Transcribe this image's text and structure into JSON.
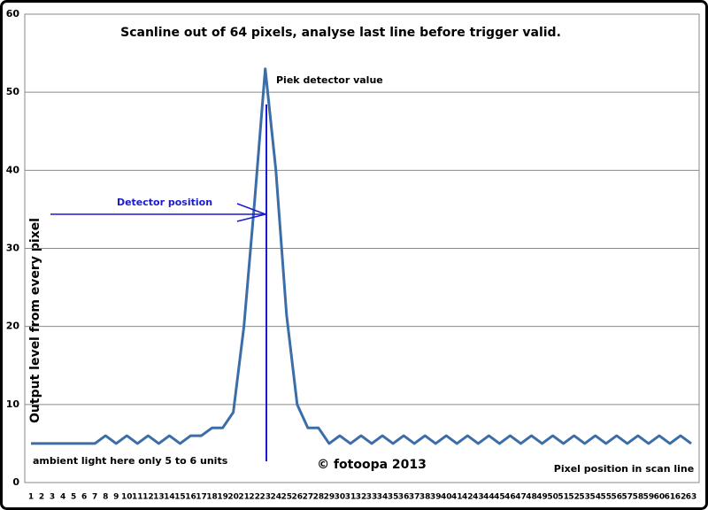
{
  "chart_data": {
    "type": "line",
    "title": "Scanline out of 64 pixels, analyse last line before trigger valid.",
    "y_label": "Output level from every    pixel",
    "x_label": "Pixel position in scan line",
    "annotations": [
      "Piek detector value",
      "Detector position",
      "ambient light here only 5 to 6 units",
      "© fotoopa 2013"
    ],
    "categories": [
      1,
      2,
      3,
      4,
      5,
      6,
      7,
      8,
      9,
      10,
      11,
      12,
      13,
      14,
      15,
      16,
      17,
      18,
      19,
      20,
      21,
      22,
      23,
      24,
      25,
      26,
      27,
      28,
      29,
      30,
      31,
      32,
      33,
      34,
      35,
      36,
      37,
      38,
      39,
      40,
      41,
      42,
      43,
      44,
      45,
      46,
      47,
      48,
      49,
      50,
      51,
      52,
      53,
      54,
      55,
      56,
      57,
      58,
      59,
      60,
      61,
      62,
      63
    ],
    "series": [
      {
        "name": "Output level",
        "color": "#3b6ea8",
        "values": [
          5,
          5,
          5,
          5,
          5,
          5,
          5,
          6,
          5,
          6,
          5,
          6,
          5,
          6,
          5,
          6,
          6,
          7,
          7,
          9,
          20,
          36,
          53,
          40,
          21.5,
          10,
          7,
          7,
          5,
          6,
          5,
          6,
          5,
          6,
          5,
          6,
          5,
          6,
          5,
          6,
          5,
          6,
          5,
          6,
          5,
          6,
          5,
          6,
          5,
          6,
          5,
          6,
          5,
          6,
          5,
          6,
          5,
          6,
          5,
          6,
          5,
          6,
          5
        ]
      }
    ],
    "ylim": [
      0,
      60
    ],
    "yticks": [
      0,
      10,
      20,
      30,
      40,
      50,
      60
    ],
    "grid": true
  }
}
